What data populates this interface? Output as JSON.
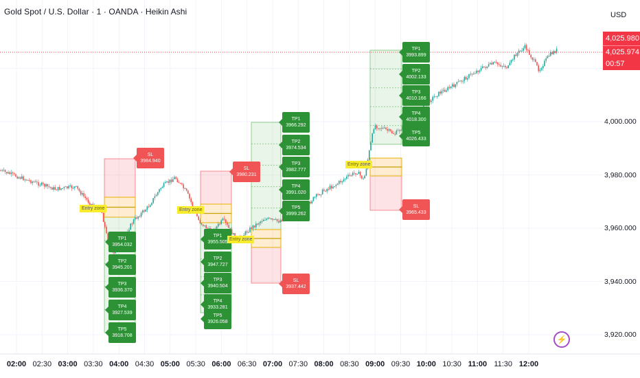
{
  "header": {
    "title": "Gold Spot / U.S. Dollar · 1 · OANDA · Heikin Ashi"
  },
  "price_axis": {
    "currency": "USD",
    "ticks": [
      "4,000.000",
      "3,980.000",
      "3,960.000",
      "3,940.000",
      "3,920.000"
    ],
    "last_price_tag": {
      "ask": "4,025.980",
      "bid": "4,025.974",
      "countdown": "00:57"
    }
  },
  "time_axis": {
    "ticks": [
      {
        "label": "02:00",
        "bold": true
      },
      {
        "label": "02:30",
        "bold": false
      },
      {
        "label": "03:00",
        "bold": true
      },
      {
        "label": "03:30",
        "bold": false
      },
      {
        "label": "04:00",
        "bold": true
      },
      {
        "label": "04:30",
        "bold": false
      },
      {
        "label": "05:00",
        "bold": true
      },
      {
        "label": "05:30",
        "bold": false
      },
      {
        "label": "06:00",
        "bold": true
      },
      {
        "label": "06:30",
        "bold": false
      },
      {
        "label": "07:00",
        "bold": true
      },
      {
        "label": "07:30",
        "bold": false
      },
      {
        "label": "08:00",
        "bold": true
      },
      {
        "label": "08:30",
        "bold": false
      },
      {
        "label": "09:00",
        "bold": true
      },
      {
        "label": "09:30",
        "bold": false
      },
      {
        "label": "10:00",
        "bold": true
      },
      {
        "label": "10:30",
        "bold": false
      },
      {
        "label": "11:00",
        "bold": true
      },
      {
        "label": "11:30",
        "bold": false
      },
      {
        "label": "12:00",
        "bold": true
      }
    ]
  },
  "colors": {
    "up": "#26a69a",
    "down": "#ef5350",
    "tp": "#2d9236",
    "sl": "#f05454",
    "entry": "#f8ec2c",
    "price_line": "#f23645",
    "icon": "#a54bc5"
  },
  "trades": [
    {
      "entry_label": "Entry zone",
      "sl": {
        "label": "SL",
        "value": "3984.940"
      },
      "tps": [
        {
          "label": "TP1",
          "value": "3954.032"
        },
        {
          "label": "TP2",
          "value": "3945.201"
        },
        {
          "label": "TP3",
          "value": "3936.370"
        },
        {
          "label": "TP4",
          "value": "3927.539"
        },
        {
          "label": "TP5",
          "value": "3918.708"
        }
      ]
    },
    {
      "entry_label": "Entry zone",
      "sl": {
        "label": "SL",
        "value": "3980.231"
      },
      "tps": [
        {
          "label": "TP1",
          "value": "3955.505"
        },
        {
          "label": "TP2",
          "value": "3947.727"
        },
        {
          "label": "TP3",
          "value": "3940.504"
        },
        {
          "label": "TP4",
          "value": "3933.281"
        },
        {
          "label": "TP5",
          "value": "3926.058"
        }
      ]
    },
    {
      "entry_label": "Entry zone",
      "sl": {
        "label": "SL",
        "value": "3937.442"
      },
      "tps": [
        {
          "label": "TP1",
          "value": "3966.292"
        },
        {
          "label": "TP2",
          "value": "3974.534"
        },
        {
          "label": "TP3",
          "value": "3982.777"
        },
        {
          "label": "TP4",
          "value": "3991.020"
        },
        {
          "label": "TP5",
          "value": "3999.262"
        }
      ]
    },
    {
      "entry_label": "Entry zone",
      "sl": {
        "label": "SL",
        "value": "3965.433"
      },
      "tps": [
        {
          "label": "TP1",
          "value": "3993.899"
        },
        {
          "label": "TP2",
          "value": "4002.133"
        },
        {
          "label": "TP3",
          "value": "4010.166"
        },
        {
          "label": "TP4",
          "value": "4018.300"
        },
        {
          "label": "TP5",
          "value": "4026.433"
        }
      ]
    }
  ]
}
